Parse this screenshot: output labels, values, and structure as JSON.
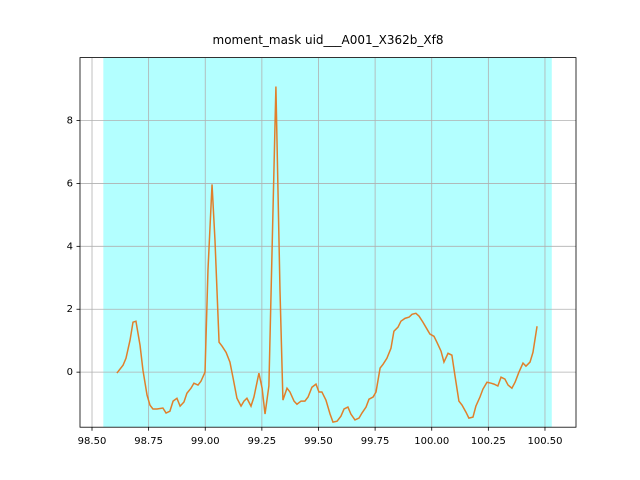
{
  "chart_data": {
    "type": "line",
    "title": "moment_mask uid___A001_X362b_Xf8",
    "x": [
      98.61,
      98.637,
      98.65,
      98.668,
      98.681,
      98.694,
      98.712,
      98.725,
      98.743,
      98.756,
      98.769,
      98.787,
      98.813,
      98.827,
      98.844,
      98.858,
      98.875,
      98.889,
      98.906,
      98.919,
      98.937,
      98.95,
      98.968,
      98.981,
      98.999,
      99.012,
      99.03,
      99.043,
      99.061,
      99.074,
      99.092,
      99.109,
      99.123,
      99.14,
      99.158,
      99.171,
      99.184,
      99.202,
      99.215,
      99.237,
      99.251,
      99.264,
      99.281,
      99.295,
      99.312,
      99.33,
      99.343,
      99.361,
      99.374,
      99.392,
      99.405,
      99.423,
      99.44,
      99.454,
      99.471,
      99.489,
      99.502,
      99.515,
      99.533,
      99.551,
      99.564,
      99.582,
      99.599,
      99.613,
      99.63,
      99.643,
      99.661,
      99.679,
      99.692,
      99.71,
      99.723,
      99.741,
      99.754,
      99.772,
      99.785,
      99.802,
      99.82,
      99.833,
      99.851,
      99.864,
      99.882,
      99.9,
      99.913,
      99.93,
      99.944,
      99.961,
      99.979,
      99.992,
      100.01,
      100.023,
      100.041,
      100.054,
      100.072,
      100.089,
      100.103,
      100.12,
      100.134,
      100.151,
      100.164,
      100.182,
      100.195,
      100.213,
      100.226,
      100.244,
      100.262,
      100.275,
      100.292,
      100.306,
      100.323,
      100.337,
      100.354,
      100.368,
      100.385,
      100.403,
      100.416,
      100.434,
      100.447,
      100.465
    ],
    "values": [
      -0.03,
      0.22,
      0.44,
      1.02,
      1.59,
      1.62,
      0.86,
      0.06,
      -0.73,
      -1.05,
      -1.17,
      -1.17,
      -1.14,
      -1.3,
      -1.24,
      -0.92,
      -0.83,
      -1.08,
      -0.95,
      -0.67,
      -0.51,
      -0.35,
      -0.41,
      -0.29,
      0,
      3.24,
      5.97,
      4.19,
      0.95,
      0.83,
      0.63,
      0.32,
      -0.19,
      -0.83,
      -1.08,
      -0.92,
      -0.83,
      -1.08,
      -0.79,
      -0.03,
      -0.51,
      -1.33,
      -0.44,
      3.87,
      9.08,
      2.6,
      -0.89,
      -0.51,
      -0.63,
      -0.92,
      -1.02,
      -0.92,
      -0.92,
      -0.79,
      -0.48,
      -0.38,
      -0.63,
      -0.63,
      -0.89,
      -1.33,
      -1.59,
      -1.56,
      -1.4,
      -1.17,
      -1.11,
      -1.33,
      -1.52,
      -1.46,
      -1.3,
      -1.11,
      -0.86,
      -0.79,
      -0.63,
      0.13,
      0.25,
      0.44,
      0.76,
      1.3,
      1.43,
      1.62,
      1.71,
      1.75,
      1.84,
      1.87,
      1.78,
      1.59,
      1.37,
      1.21,
      1.14,
      0.95,
      0.67,
      0.32,
      0.6,
      0.54,
      -0.13,
      -0.92,
      -1.05,
      -1.27,
      -1.46,
      -1.43,
      -1.08,
      -0.79,
      -0.54,
      -0.32,
      -0.35,
      -0.38,
      -0.44,
      -0.16,
      -0.22,
      -0.41,
      -0.51,
      -0.32,
      0,
      0.29,
      0.19,
      0.32,
      0.63,
      1.46
    ],
    "color": "#e07f2b",
    "axvspan": [
      98.55,
      100.53
    ],
    "span_color": "#b3ffff",
    "xlim": [
      98.447,
      100.637
    ],
    "ylim": [
      -1.75,
      10.0
    ],
    "xticks": [
      {
        "value": 98.5,
        "label": "98.50"
      },
      {
        "value": 98.75,
        "label": "98.75"
      },
      {
        "value": 99.0,
        "label": "99.00"
      },
      {
        "value": 99.25,
        "label": "99.25"
      },
      {
        "value": 99.5,
        "label": "99.50"
      },
      {
        "value": 99.75,
        "label": "99.75"
      },
      {
        "value": 100.0,
        "label": "100.00"
      },
      {
        "value": 100.25,
        "label": "100.25"
      },
      {
        "value": 100.5,
        "label": "100.50"
      }
    ],
    "yticks": [
      0,
      2,
      4,
      6,
      8
    ],
    "grid": true
  }
}
